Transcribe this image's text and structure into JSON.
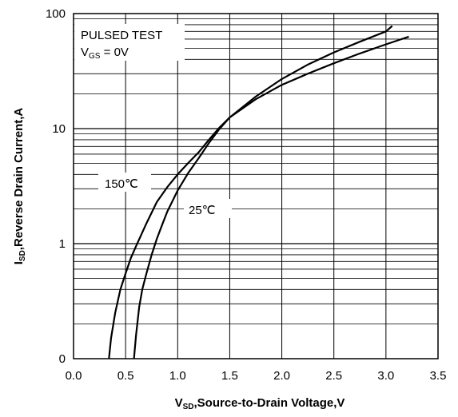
{
  "chart_data": {
    "type": "line",
    "title": "",
    "xlabel": {
      "main": "V",
      "sub": "SD",
      "rest": ",Source-to-Drain Voltage,V"
    },
    "ylabel": {
      "main": "I",
      "sub": "SD",
      "rest": ",Reverse Drain Current,A"
    },
    "x_range": [
      0,
      3.5
    ],
    "x_ticks": [
      "0.0",
      "0.5",
      "1.0",
      "1.5",
      "2.0",
      "2.5",
      "3.0",
      "3.5"
    ],
    "y_scale": "log",
    "y_ticks": [
      "0",
      "1",
      "10",
      "100"
    ],
    "grid": true,
    "annotation": {
      "line1": "PULSED TEST",
      "line2": {
        "main": "V",
        "sub": "GS",
        "rest": " = 0V"
      }
    },
    "series": [
      {
        "name": "150℃",
        "color": "#000000",
        "points": [
          [
            0.34,
            0.1
          ],
          [
            0.36,
            0.15
          ],
          [
            0.4,
            0.25
          ],
          [
            0.45,
            0.4
          ],
          [
            0.5,
            0.55
          ],
          [
            0.55,
            0.75
          ],
          [
            0.6,
            0.95
          ],
          [
            0.7,
            1.5
          ],
          [
            0.8,
            2.3
          ],
          [
            0.9,
            3.1
          ],
          [
            1.0,
            4.0
          ],
          [
            1.1,
            5.0
          ],
          [
            1.2,
            6.2
          ],
          [
            1.3,
            8.0
          ],
          [
            1.4,
            10.2
          ],
          [
            1.5,
            12.5
          ],
          [
            1.75,
            18.0
          ],
          [
            2.0,
            24.0
          ],
          [
            2.25,
            30.0
          ],
          [
            2.5,
            37.0
          ],
          [
            2.75,
            45.0
          ],
          [
            3.0,
            54.0
          ],
          [
            3.22,
            63.0
          ]
        ]
      },
      {
        "name": "25℃",
        "color": "#000000",
        "points": [
          [
            0.58,
            0.1
          ],
          [
            0.6,
            0.16
          ],
          [
            0.63,
            0.28
          ],
          [
            0.66,
            0.4
          ],
          [
            0.7,
            0.55
          ],
          [
            0.75,
            0.8
          ],
          [
            0.8,
            1.1
          ],
          [
            0.85,
            1.45
          ],
          [
            0.9,
            1.9
          ],
          [
            1.0,
            2.9
          ],
          [
            1.1,
            4.1
          ],
          [
            1.2,
            5.5
          ],
          [
            1.3,
            7.5
          ],
          [
            1.4,
            9.9
          ],
          [
            1.5,
            12.5
          ],
          [
            1.75,
            19.0
          ],
          [
            2.0,
            27.0
          ],
          [
            2.25,
            36.0
          ],
          [
            2.5,
            46.0
          ],
          [
            2.75,
            57.0
          ],
          [
            3.0,
            70.0
          ],
          [
            3.06,
            78.0
          ]
        ]
      }
    ],
    "curve_labels": [
      "150℃",
      "25℃"
    ]
  }
}
